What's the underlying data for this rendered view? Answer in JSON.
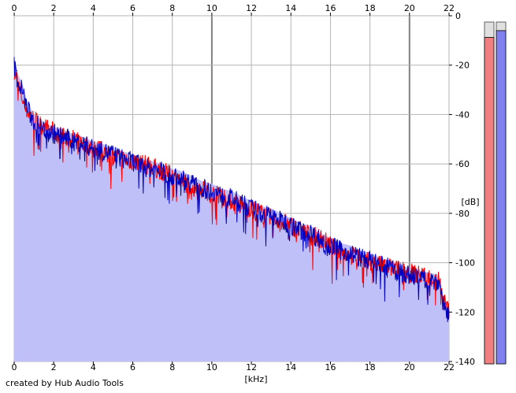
{
  "app": {
    "credit_text": "created by Hub Audio Tools"
  },
  "chart_data": {
    "type": "area",
    "title": "",
    "xlabel": "[kHz]",
    "ylabel": "[dB]",
    "xlim": [
      0,
      22
    ],
    "ylim": [
      -140,
      0
    ],
    "x_ticks": [
      "0",
      "2",
      "4",
      "6",
      "8",
      "10",
      "12",
      "14",
      "16",
      "18",
      "20",
      "22"
    ],
    "y_ticks": [
      "0",
      "-20",
      "-40",
      "-60",
      "-80",
      "-100",
      "-120",
      "-140"
    ],
    "grid": true,
    "colors": {
      "fill": "#c0c0f8",
      "left_channel": "#ff0000",
      "right_channel": "#0000c0",
      "grid": "#b4b4b4",
      "major_grid": "#808080",
      "left_meter": "#f08080",
      "right_meter": "#8080f0"
    },
    "series": [
      {
        "x": [
          0.0,
          0.2,
          0.4,
          0.6,
          0.8,
          1.0,
          1.5,
          2.0,
          2.5,
          3.0,
          3.5,
          4.0,
          4.5,
          5.0,
          5.5,
          6.0,
          6.5,
          7.0,
          7.5,
          8.0,
          8.5,
          9.0,
          9.5,
          10.0,
          10.5,
          11.0,
          11.5,
          12.0,
          12.5,
          13.0,
          13.5,
          14.0,
          14.5,
          15.0,
          15.5,
          16.0,
          16.5,
          17.0,
          17.5,
          18.0,
          18.5,
          19.0,
          19.5,
          20.0,
          20.5,
          21.0,
          21.5,
          21.7,
          22.0
        ],
        "values": [
          -22,
          -28,
          -33,
          -38,
          -40,
          -42,
          -45,
          -47,
          -49,
          -50,
          -52,
          -53,
          -55,
          -57,
          -58,
          -59,
          -60,
          -61,
          -63,
          -65,
          -67,
          -69,
          -70,
          -72,
          -73,
          -75,
          -77,
          -78,
          -80,
          -82,
          -83,
          -85,
          -87,
          -89,
          -90,
          -93,
          -95,
          -97,
          -98,
          -100,
          -101,
          -102,
          -103,
          -104,
          -105,
          -106,
          -107,
          -115,
          -120
        ]
      },
      {
        "x": [
          0.0,
          0.2,
          0.4,
          0.6,
          0.8,
          1.0,
          1.5,
          2.0,
          2.5,
          3.0,
          3.5,
          4.0,
          4.5,
          5.0,
          5.5,
          6.0,
          6.5,
          7.0,
          7.5,
          8.0,
          8.5,
          9.0,
          9.5,
          10.0,
          10.5,
          11.0,
          11.5,
          12.0,
          12.5,
          13.0,
          13.5,
          14.0,
          14.5,
          15.0,
          15.5,
          16.0,
          16.5,
          17.0,
          17.5,
          18.0,
          18.5,
          19.0,
          19.5,
          20.0,
          20.5,
          21.0,
          21.5,
          21.7,
          22.0
        ],
        "values": [
          -20,
          -27,
          -30,
          -36,
          -40,
          -43,
          -46,
          -48,
          -49,
          -51,
          -52,
          -54,
          -55,
          -56,
          -58,
          -59,
          -61,
          -62,
          -63,
          -65,
          -66,
          -68,
          -70,
          -71,
          -73,
          -74,
          -76,
          -78,
          -80,
          -81,
          -83,
          -85,
          -87,
          -88,
          -91,
          -93,
          -95,
          -96,
          -98,
          -99,
          -101,
          -102,
          -104,
          -105,
          -106,
          -107,
          -108,
          -116,
          -122
        ]
      }
    ],
    "meters": {
      "left_level": 0.955,
      "right_level": 0.975
    }
  }
}
